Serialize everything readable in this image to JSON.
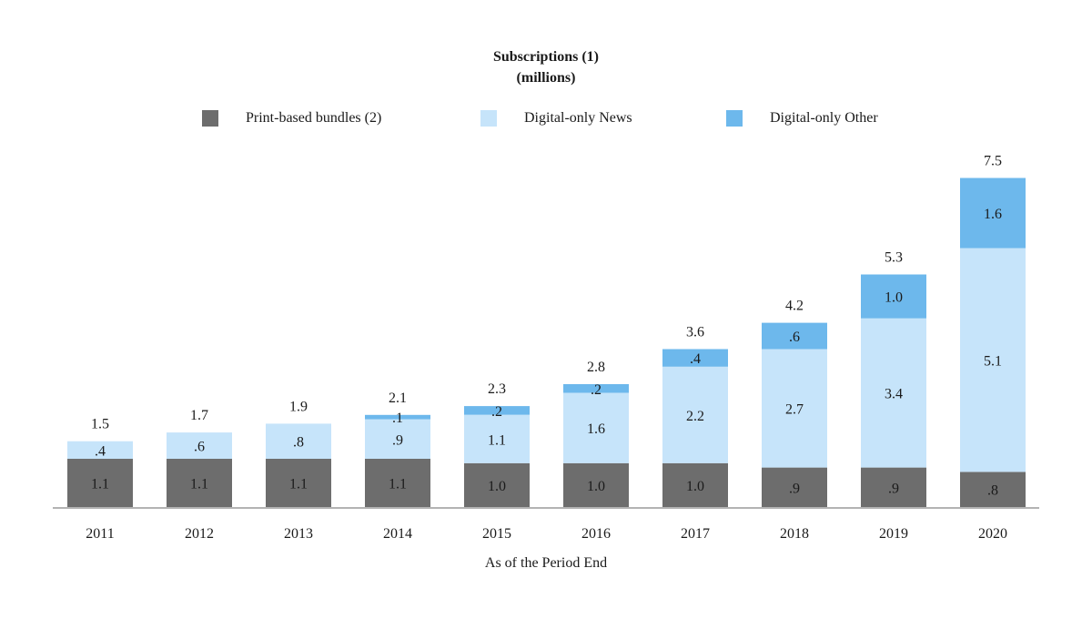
{
  "chart_data": {
    "type": "bar",
    "stacked": true,
    "title": "Subscriptions (1)",
    "subtitle": "(millions)",
    "xlabel": "As of the Period End",
    "ylabel": "",
    "grid": false,
    "legend_position": "top",
    "categories": [
      "2011",
      "2012",
      "2013",
      "2014",
      "2015",
      "2016",
      "2017",
      "2018",
      "2019",
      "2020"
    ],
    "series": [
      {
        "name": "Print-based bundles (2)",
        "color": "#6d6d6d",
        "values": [
          1.1,
          1.1,
          1.1,
          1.1,
          1.0,
          1.0,
          1.0,
          0.9,
          0.9,
          0.8
        ],
        "labels": [
          "1.1",
          "1.1",
          "1.1",
          "1.1",
          "1.0",
          "1.0",
          "1.0",
          ".9",
          ".9",
          ".8"
        ]
      },
      {
        "name": "Digital-only News",
        "color": "#c6e4fa",
        "values": [
          0.4,
          0.6,
          0.8,
          0.9,
          1.1,
          1.6,
          2.2,
          2.7,
          3.4,
          5.1
        ],
        "labels": [
          ".4",
          ".6",
          ".8",
          ".9",
          "1.1",
          "1.6",
          "2.2",
          "2.7",
          "3.4",
          "5.1"
        ]
      },
      {
        "name": "Digital-only Other",
        "color": "#6db8ec",
        "values": [
          0,
          0,
          0,
          0.1,
          0.2,
          0.2,
          0.4,
          0.6,
          1.0,
          1.6
        ],
        "labels": [
          "",
          "",
          "",
          ".1",
          ".2",
          ".2",
          ".4",
          ".6",
          "1.0",
          "1.6"
        ]
      }
    ],
    "totals": [
      1.5,
      1.7,
      1.9,
      2.1,
      2.3,
      2.8,
      3.6,
      4.2,
      5.3,
      7.5
    ],
    "total_labels": [
      "1.5",
      "1.7",
      "1.9",
      "2.1",
      "2.3",
      "2.8",
      "3.6",
      "4.2",
      "5.3",
      "7.5"
    ],
    "ylim": [
      0,
      7.5
    ]
  }
}
